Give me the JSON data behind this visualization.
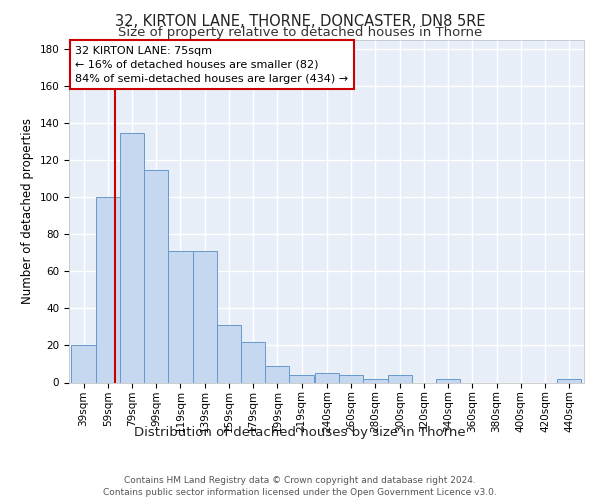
{
  "title1": "32, KIRTON LANE, THORNE, DONCASTER, DN8 5RE",
  "title2": "Size of property relative to detached houses in Thorne",
  "xlabel": "Distribution of detached houses by size in Thorne",
  "ylabel": "Number of detached properties",
  "footer": "Contains HM Land Registry data © Crown copyright and database right 2024.\nContains public sector information licensed under the Open Government Licence v3.0.",
  "annotation_line1": "32 KIRTON LANE: 75sqm",
  "annotation_line2": "← 16% of detached houses are smaller (82)",
  "annotation_line3": "84% of semi-detached houses are larger (434) →",
  "bin_labels": [
    "39sqm",
    "59sqm",
    "79sqm",
    "99sqm",
    "119sqm",
    "139sqm",
    "159sqm",
    "179sqm",
    "199sqm",
    "219sqm",
    "240sqm",
    "260sqm",
    "280sqm",
    "300sqm",
    "320sqm",
    "340sqm",
    "360sqm",
    "380sqm",
    "400sqm",
    "420sqm",
    "440sqm"
  ],
  "bin_starts": [
    39,
    59,
    79,
    99,
    119,
    139,
    159,
    179,
    199,
    219,
    240,
    260,
    280,
    300,
    320,
    340,
    360,
    380,
    400,
    420,
    440
  ],
  "bar_heights": [
    20,
    100,
    135,
    115,
    71,
    71,
    31,
    22,
    9,
    4,
    5,
    4,
    2,
    4,
    0,
    2,
    0,
    0,
    0,
    0,
    2
  ],
  "bar_color": "#c5d8f0",
  "bar_edge_color": "#6699cc",
  "property_line_x": 75,
  "ylim": [
    0,
    185
  ],
  "yticks": [
    0,
    20,
    40,
    60,
    80,
    100,
    120,
    140,
    160,
    180
  ],
  "background_color": "#e8eef8",
  "grid_color": "#ffffff",
  "red_line_color": "#cc0000",
  "title1_fontsize": 10.5,
  "title2_fontsize": 9.5,
  "xlabel_fontsize": 9.5,
  "ylabel_fontsize": 8.5,
  "tick_fontsize": 7.5,
  "footer_fontsize": 6.5,
  "annotation_fontsize": 8
}
